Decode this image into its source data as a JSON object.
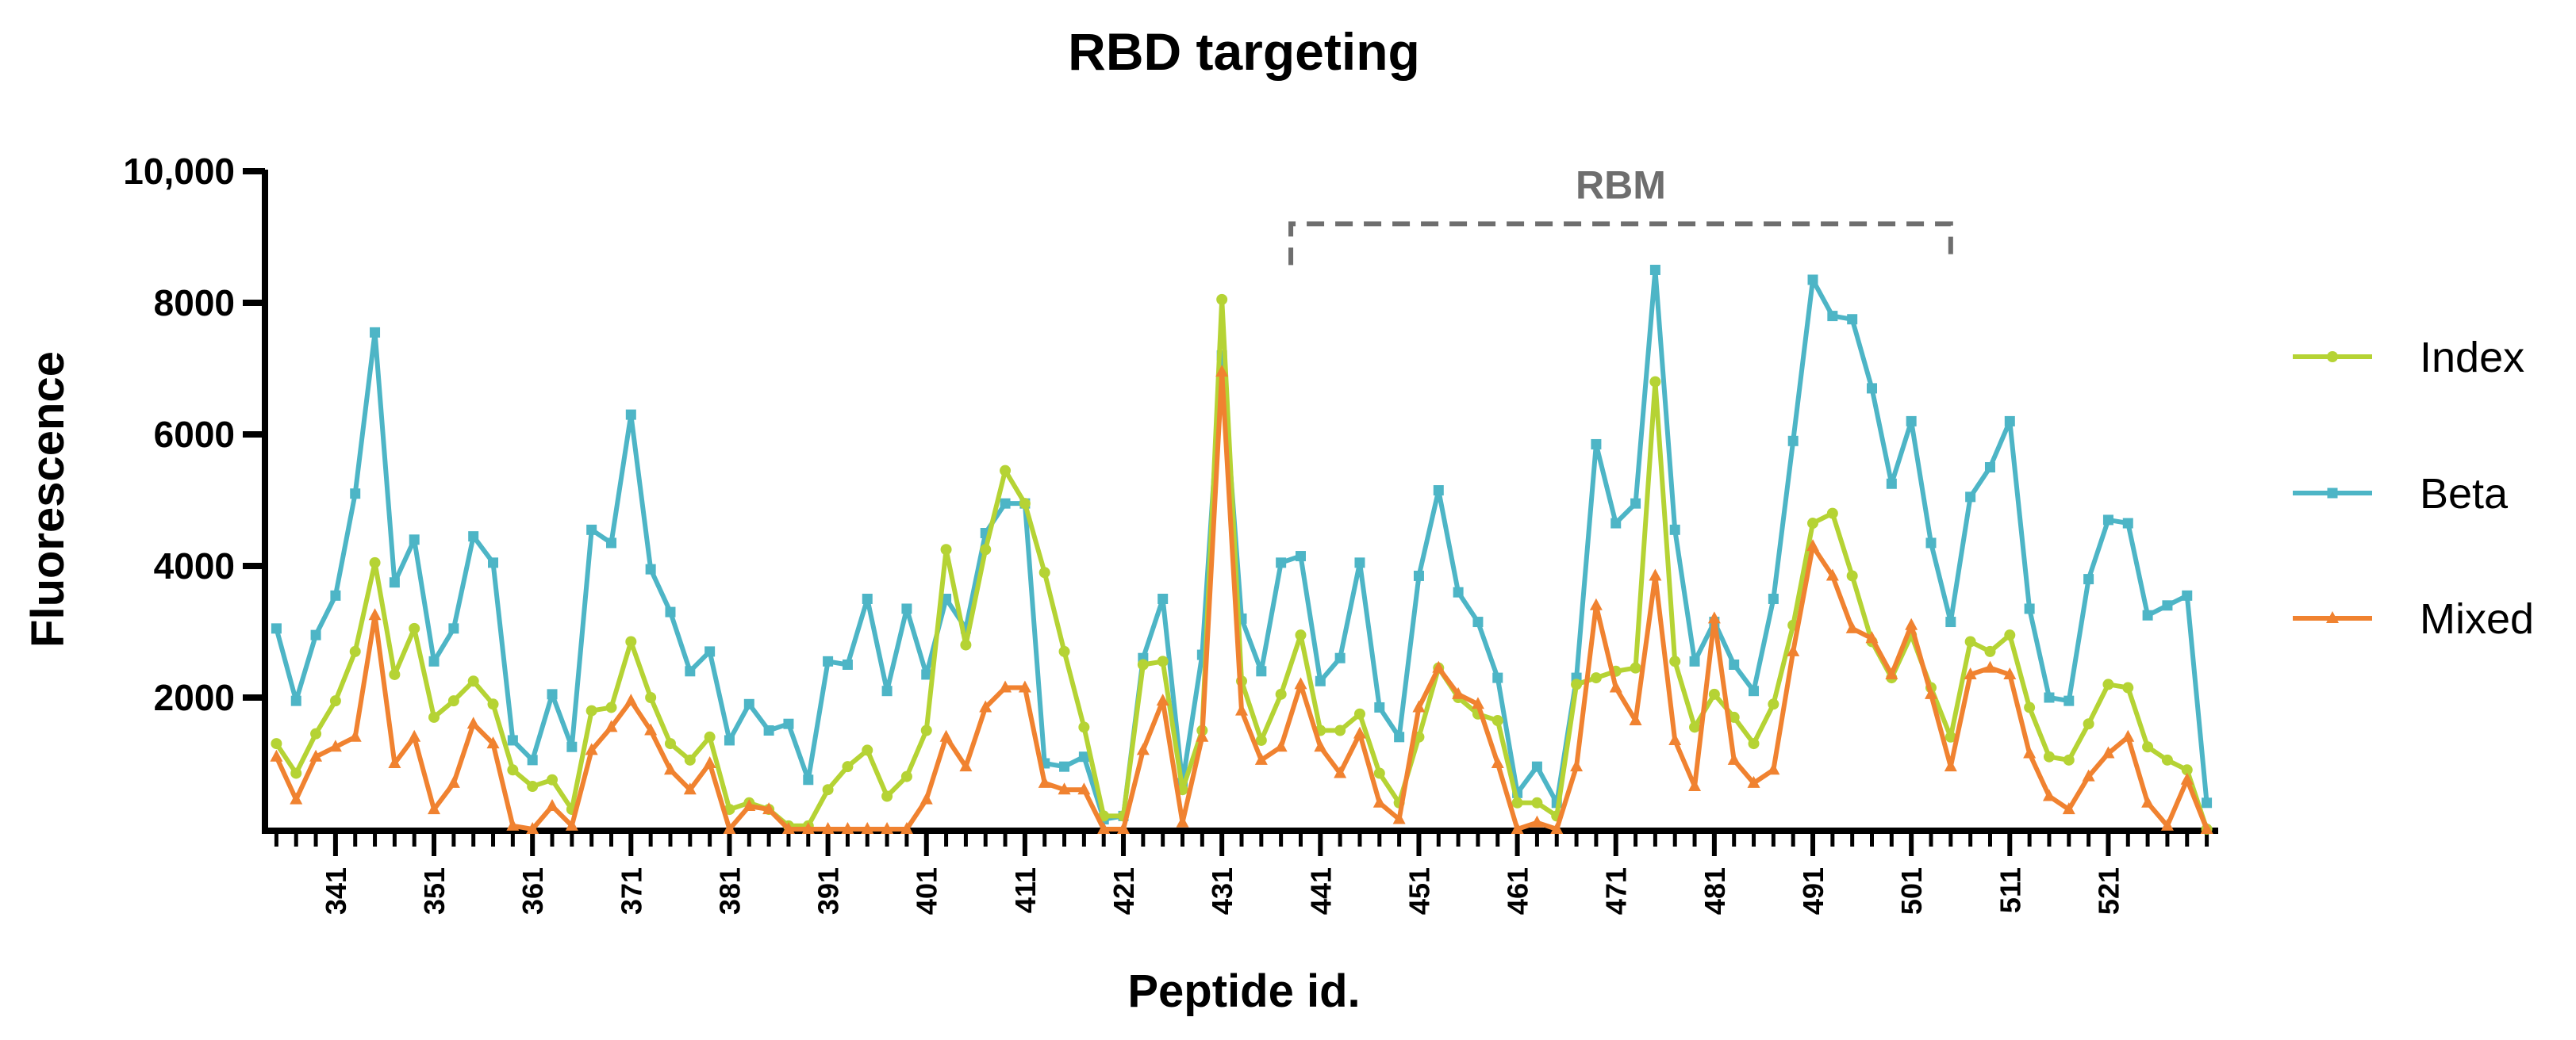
{
  "chart_data": {
    "type": "line",
    "title": "RBD targeting",
    "xlabel": "Peptide id.",
    "ylabel": "Fluorescence",
    "xlim": [
      334,
      532
    ],
    "ylim": [
      0,
      10000
    ],
    "yticks": [
      2000,
      4000,
      6000,
      8000,
      10000
    ],
    "ytick_labels": [
      "2000",
      "4000",
      "6000",
      "8000",
      "10,000"
    ],
    "xticks": [
      341,
      351,
      361,
      371,
      381,
      391,
      401,
      411,
      421,
      431,
      441,
      451,
      461,
      471,
      481,
      491,
      501,
      511,
      521
    ],
    "xtick_labels": [
      "341",
      "351",
      "361",
      "371",
      "381",
      "391",
      "401",
      "411",
      "421",
      "431",
      "441",
      "451",
      "461",
      "471",
      "481",
      "491",
      "501",
      "511",
      "521"
    ],
    "x": [
      335,
      337,
      339,
      341,
      343,
      345,
      347,
      349,
      351,
      353,
      355,
      357,
      359,
      361,
      363,
      365,
      367,
      369,
      371,
      373,
      375,
      377,
      379,
      381,
      383,
      385,
      387,
      389,
      391,
      393,
      395,
      397,
      399,
      401,
      403,
      405,
      407,
      409,
      411,
      413,
      415,
      417,
      419,
      421,
      423,
      425,
      427,
      429,
      431,
      433,
      435,
      437,
      439,
      441,
      443,
      445,
      447,
      449,
      451,
      453,
      455,
      457,
      459,
      461,
      463,
      465,
      467,
      469,
      471,
      473,
      475,
      477,
      479,
      481,
      483,
      485,
      487,
      489,
      491,
      493,
      495,
      497,
      499,
      501,
      503,
      505,
      507,
      509,
      511,
      513,
      515,
      517,
      519,
      521,
      523,
      525,
      527,
      529,
      531
    ],
    "series": [
      {
        "name": "Index",
        "color": "#b5d334",
        "marker": "circle",
        "values": [
          1300,
          850,
          1450,
          1950,
          2700,
          4050,
          2350,
          3050,
          1700,
          1950,
          2250,
          1900,
          900,
          650,
          750,
          300,
          1800,
          1850,
          2850,
          2000,
          1300,
          1050,
          1400,
          300,
          400,
          300,
          50,
          50,
          600,
          950,
          1200,
          500,
          800,
          1500,
          4250,
          2800,
          4250,
          5450,
          4950,
          3900,
          2700,
          1550,
          200,
          200,
          2500,
          2550,
          600,
          1500,
          8050,
          2250,
          1350,
          2050,
          2950,
          1500,
          1500,
          1750,
          850,
          400,
          1400,
          2450,
          2000,
          1750,
          1650,
          400,
          400,
          200,
          2200,
          2300,
          2400,
          2450,
          6800,
          2550,
          1550,
          2050,
          1700,
          1300,
          1900,
          3100,
          4650,
          4800,
          3850,
          2850,
          2300,
          2950,
          2150,
          1400,
          2850,
          2700,
          2950,
          1850,
          1100,
          1050,
          1600,
          2200,
          2150,
          1250,
          1050,
          900,
          0
        ]
      },
      {
        "name": "Beta",
        "color": "#4db5c6",
        "marker": "square",
        "values": [
          3050,
          1950,
          2950,
          3550,
          5100,
          7550,
          3750,
          4400,
          2550,
          3050,
          4450,
          4050,
          1350,
          1050,
          2050,
          1250,
          4550,
          4350,
          6300,
          3950,
          3300,
          2400,
          2700,
          1350,
          1900,
          1500,
          1600,
          750,
          2550,
          2500,
          3500,
          2100,
          3350,
          2350,
          3500,
          3050,
          4500,
          4950,
          4950,
          1000,
          950,
          1100,
          150,
          200,
          2600,
          3500,
          700,
          2650,
          7200,
          3200,
          2400,
          4050,
          4150,
          2250,
          2600,
          4050,
          1850,
          1400,
          3850,
          5150,
          3600,
          3150,
          2300,
          550,
          950,
          400,
          2300,
          5850,
          4650,
          4950,
          8500,
          4550,
          2550,
          3150,
          2500,
          2100,
          3500,
          5900,
          8350,
          7800,
          7750,
          6700,
          5250,
          6200,
          4350,
          3150,
          5050,
          5500,
          6200,
          3350,
          2000,
          1950,
          3800,
          4700,
          4650,
          3250,
          3400,
          3550,
          400
        ]
      },
      {
        "name": "Mixed",
        "color": "#f08230",
        "marker": "triangle",
        "values": [
          1100,
          450,
          1100,
          1250,
          1400,
          3250,
          1000,
          1400,
          300,
          700,
          1600,
          1300,
          50,
          0,
          350,
          50,
          1200,
          1550,
          1950,
          1500,
          900,
          600,
          1000,
          0,
          350,
          300,
          0,
          0,
          0,
          0,
          0,
          0,
          0,
          450,
          1400,
          950,
          1850,
          2150,
          2150,
          700,
          600,
          600,
          0,
          0,
          1200,
          1950,
          100,
          1400,
          6950,
          1800,
          1050,
          1250,
          2200,
          1250,
          850,
          1450,
          400,
          150,
          1850,
          2450,
          2050,
          1900,
          1000,
          0,
          100,
          0,
          950,
          3400,
          2150,
          1650,
          3850,
          1350,
          650,
          3200,
          1050,
          700,
          900,
          2700,
          4300,
          3850,
          3050,
          2900,
          2350,
          3100,
          2050,
          950,
          2350,
          2450,
          2350,
          1150,
          500,
          300,
          800,
          1150,
          1400,
          400,
          50,
          750,
          0
        ]
      }
    ],
    "annotation": {
      "label": "RBM",
      "start": 438,
      "end": 505,
      "level": 9200,
      "style": "dashed-bracket",
      "color": "#6e6e6e"
    },
    "legend": {
      "placement": "right",
      "entries": [
        "Index",
        "Beta",
        "Mixed"
      ]
    },
    "grid": false
  }
}
